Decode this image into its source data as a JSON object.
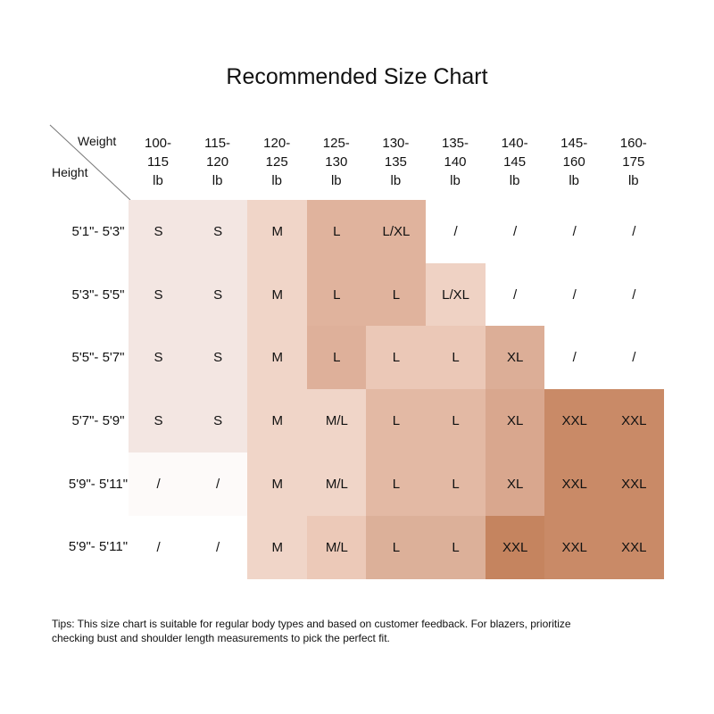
{
  "title": "Recommended Size Chart",
  "corner": {
    "weight": "Weight",
    "height": "Height"
  },
  "columns": [
    [
      "100-",
      "115",
      "lb"
    ],
    [
      "115-",
      "120",
      "lb"
    ],
    [
      "120-",
      "125",
      "lb"
    ],
    [
      "125-",
      "130",
      "lb"
    ],
    [
      "130-",
      "135",
      "lb"
    ],
    [
      "135-",
      "140",
      "lb"
    ],
    [
      "140-",
      "145",
      "lb"
    ],
    [
      "145-",
      "160",
      "lb"
    ],
    [
      "160-",
      "175",
      "lb"
    ]
  ],
  "rows": [
    {
      "label": "5'1\"- 5'3\"",
      "cells": [
        "S",
        "S",
        "M",
        "L",
        "L/XL",
        "/",
        "/",
        "/",
        "/"
      ],
      "colors": [
        "#f3e6e2",
        "#f3e6e2",
        "#f0d5c8",
        "#e0b39d",
        "#e0b39d",
        "#ffffff",
        "#ffffff",
        "#ffffff",
        "#ffffff"
      ]
    },
    {
      "label": "5'3\"- 5'5\"",
      "cells": [
        "S",
        "S",
        "M",
        "L",
        "L",
        "L/XL",
        "/",
        "/",
        "/"
      ],
      "colors": [
        "#f3e6e2",
        "#f3e6e2",
        "#f0d5c8",
        "#e0b39d",
        "#e0b39d",
        "#efd2c4",
        "#ffffff",
        "#ffffff",
        "#ffffff"
      ]
    },
    {
      "label": "5'5\"- 5'7\"",
      "cells": [
        "S",
        "S",
        "M",
        "L",
        "L",
        "L",
        "XL",
        "/",
        "/"
      ],
      "colors": [
        "#f3e6e2",
        "#f3e6e2",
        "#f0d5c8",
        "#deb09a",
        "#ebc8b7",
        "#ebc8b7",
        "#dcae97",
        "#ffffff",
        "#ffffff"
      ]
    },
    {
      "label": "5'7\"- 5'9\"",
      "cells": [
        "S",
        "S",
        "M",
        "M/L",
        "L",
        "L",
        "XL",
        "XXL",
        "XXL"
      ],
      "colors": [
        "#f3e6e2",
        "#f3e6e2",
        "#f0d5c8",
        "#f0d5c8",
        "#e3b9a4",
        "#e3b9a4",
        "#d9a78e",
        "#c98a67",
        "#c98a67"
      ]
    },
    {
      "label": "5'9\"- 5'11\"",
      "cells": [
        "/",
        "/",
        "M",
        "M/L",
        "L",
        "L",
        "XL",
        "XXL",
        "XXL"
      ],
      "colors": [
        "#fdfaf9",
        "#fdfaf9",
        "#f0d5c8",
        "#f0d5c8",
        "#e3b9a4",
        "#e3b9a4",
        "#d9a78e",
        "#c98a67",
        "#c98a67"
      ]
    },
    {
      "label": "5'9\"- 5'11\"",
      "cells": [
        "/",
        "/",
        "M",
        "M/L",
        "L",
        "L",
        "XXL",
        "XXL",
        "XXL"
      ],
      "colors": [
        "#ffffff",
        "#ffffff",
        "#f0d5c8",
        "#ecc9b8",
        "#dcb099",
        "#dcb099",
        "#c5845f",
        "#c98a67",
        "#c98a67"
      ]
    }
  ],
  "tips": [
    "Tips: This size chart is suitable for regular body types and based on customer feedback. For blazers, prioritize",
    "checking bust and shoulder length measurements to pick the perfect fit."
  ]
}
